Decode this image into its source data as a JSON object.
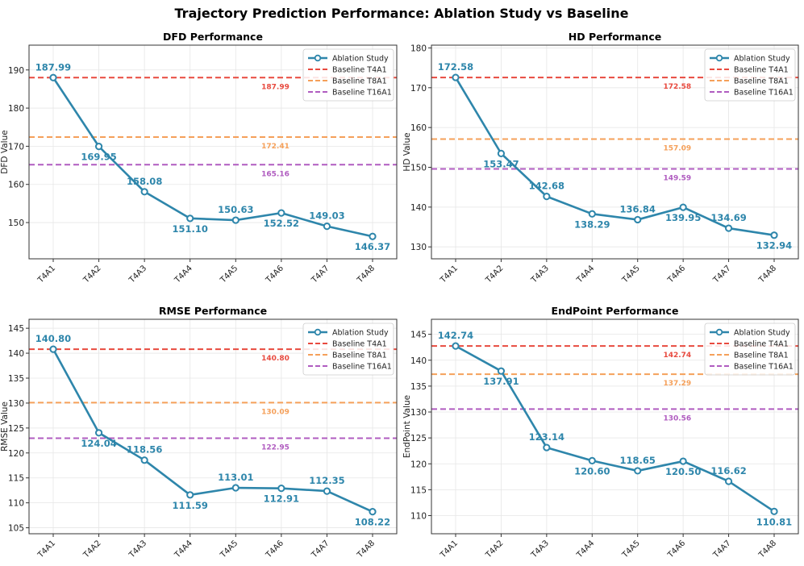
{
  "figure": {
    "title": "Trajectory Prediction Performance: Ablation Study vs Baseline"
  },
  "colors": {
    "ablation": "#2e86ab",
    "baseline_t4a1": "#e84a3f",
    "baseline_t8a1": "#f5a05a",
    "baseline_t16a1": "#b05cc0",
    "grid": "#e6e6e6",
    "axis": "#333333"
  },
  "chart_data": [
    {
      "type": "line",
      "title": "DFD Performance",
      "ylabel": "DFD Value",
      "xlabel": "",
      "categories": [
        "T4A1",
        "T4A2",
        "T4A3",
        "T4A4",
        "T4A5",
        "T4A6",
        "T4A7",
        "T4A8"
      ],
      "series": [
        {
          "name": "Ablation Study",
          "values": [
            187.99,
            169.95,
            158.08,
            151.1,
            150.63,
            152.52,
            149.03,
            146.37
          ],
          "labels": [
            "187.99",
            "169.95",
            "158.08",
            "151.10",
            "150.63",
            "152.52",
            "149.03",
            "146.37"
          ],
          "label_side": [
            "above",
            "below",
            "above",
            "below",
            "above",
            "below",
            "above",
            "below"
          ]
        }
      ],
      "baselines": [
        {
          "name": "Baseline T4A1",
          "value": 187.99,
          "label": "187.99"
        },
        {
          "name": "Baseline T8A1",
          "value": 172.41,
          "label": "172.41"
        },
        {
          "name": "Baseline T16A1",
          "value": 165.16,
          "label": "165.16"
        }
      ],
      "ylim": [
        140.5,
        196.5
      ],
      "yticks": [
        150,
        160,
        170,
        180,
        190
      ],
      "legend": "top-right",
      "grid": true
    },
    {
      "type": "line",
      "title": "HD Performance",
      "ylabel": "HD Value",
      "xlabel": "",
      "categories": [
        "T4A1",
        "T4A2",
        "T4A3",
        "T4A4",
        "T4A5",
        "T4A6",
        "T4A7",
        "T4A8"
      ],
      "series": [
        {
          "name": "Ablation Study",
          "values": [
            172.58,
            153.47,
            142.68,
            138.29,
            136.84,
            139.95,
            134.69,
            132.94
          ],
          "labels": [
            "172.58",
            "153.47",
            "142.68",
            "138.29",
            "136.84",
            "139.95",
            "134.69",
            "132.94"
          ],
          "label_side": [
            "above",
            "below",
            "above",
            "below",
            "above",
            "below",
            "above",
            "below"
          ]
        }
      ],
      "baselines": [
        {
          "name": "Baseline T4A1",
          "value": 172.58,
          "label": "172.58"
        },
        {
          "name": "Baseline T8A1",
          "value": 157.09,
          "label": "157.09"
        },
        {
          "name": "Baseline T16A1",
          "value": 149.59,
          "label": "149.59"
        }
      ],
      "ylim": [
        127.0,
        180.7
      ],
      "yticks": [
        130,
        140,
        150,
        160,
        170,
        180
      ],
      "legend": "top-right",
      "grid": true
    },
    {
      "type": "line",
      "title": "RMSE Performance",
      "ylabel": "RMSE Value",
      "xlabel": "",
      "categories": [
        "T4A1",
        "T4A2",
        "T4A3",
        "T4A4",
        "T4A5",
        "T4A6",
        "T4A7",
        "T4A8"
      ],
      "series": [
        {
          "name": "Ablation Study",
          "values": [
            140.8,
            124.04,
            118.56,
            111.59,
            113.01,
            112.91,
            112.35,
            108.22
          ],
          "labels": [
            "140.80",
            "124.04",
            "118.56",
            "111.59",
            "113.01",
            "112.91",
            "112.35",
            "108.22"
          ],
          "label_side": [
            "above",
            "below",
            "above",
            "below",
            "above",
            "below",
            "above",
            "below"
          ]
        }
      ],
      "baselines": [
        {
          "name": "Baseline T4A1",
          "value": 140.8,
          "label": "140.80"
        },
        {
          "name": "Baseline T8A1",
          "value": 130.09,
          "label": "130.09"
        },
        {
          "name": "Baseline T16A1",
          "value": 122.95,
          "label": "122.95"
        }
      ],
      "ylim": [
        103.8,
        146.8
      ],
      "yticks": [
        105,
        110,
        115,
        120,
        125,
        130,
        135,
        140,
        145
      ],
      "legend": "top-right",
      "grid": true
    },
    {
      "type": "line",
      "title": "EndPoint Performance",
      "ylabel": "EndPoint Value",
      "xlabel": "",
      "categories": [
        "T4A1",
        "T4A2",
        "T4A3",
        "T4A4",
        "T4A5",
        "T4A6",
        "T4A7",
        "T4A8"
      ],
      "series": [
        {
          "name": "Ablation Study",
          "values": [
            142.74,
            137.91,
            123.14,
            120.6,
            118.65,
            120.5,
            116.62,
            110.81
          ],
          "labels": [
            "142.74",
            "137.91",
            "123.14",
            "120.60",
            "118.65",
            "120.50",
            "116.62",
            "110.81"
          ],
          "label_side": [
            "above",
            "below",
            "above",
            "below",
            "above",
            "below",
            "above",
            "below"
          ]
        }
      ],
      "baselines": [
        {
          "name": "Baseline T4A1",
          "value": 142.74,
          "label": "142.74"
        },
        {
          "name": "Baseline T8A1",
          "value": 137.29,
          "label": "137.29"
        },
        {
          "name": "Baseline T16A1",
          "value": 130.56,
          "label": "130.56"
        }
      ],
      "ylim": [
        106.5,
        147.9
      ],
      "yticks": [
        110,
        115,
        120,
        125,
        130,
        135,
        140,
        145
      ],
      "legend": "top-right",
      "grid": true
    }
  ]
}
